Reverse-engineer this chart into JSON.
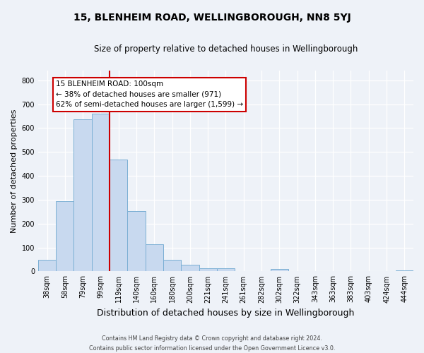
{
  "title": "15, BLENHEIM ROAD, WELLINGBOROUGH, NN8 5YJ",
  "subtitle": "Size of property relative to detached houses in Wellingborough",
  "xlabel": "Distribution of detached houses by size in Wellingborough",
  "ylabel": "Number of detached properties",
  "bar_labels": [
    "38sqm",
    "58sqm",
    "79sqm",
    "99sqm",
    "119sqm",
    "140sqm",
    "160sqm",
    "180sqm",
    "200sqm",
    "221sqm",
    "241sqm",
    "261sqm",
    "282sqm",
    "302sqm",
    "322sqm",
    "343sqm",
    "363sqm",
    "383sqm",
    "403sqm",
    "424sqm",
    "444sqm"
  ],
  "bar_values": [
    48,
    295,
    638,
    660,
    468,
    253,
    113,
    48,
    28,
    13,
    14,
    0,
    0,
    10,
    0,
    0,
    0,
    0,
    0,
    0,
    5
  ],
  "bar_color": "#c8d9ef",
  "bar_edge_color": "#7bafd4",
  "vline_color": "#cc0000",
  "ylim": [
    0,
    840
  ],
  "yticks": [
    0,
    100,
    200,
    300,
    400,
    500,
    600,
    700,
    800
  ],
  "annotation_text": "15 BLENHEIM ROAD: 100sqm\n← 38% of detached houses are smaller (971)\n62% of semi-detached houses are larger (1,599) →",
  "annotation_box_color": "#ffffff",
  "annotation_box_edge": "#cc0000",
  "footer_line1": "Contains HM Land Registry data © Crown copyright and database right 2024.",
  "footer_line2": "Contains public sector information licensed under the Open Government Licence v3.0.",
  "bg_color": "#eef2f8",
  "grid_color": "#ffffff",
  "title_fontsize": 10,
  "subtitle_fontsize": 8.5,
  "ylabel_fontsize": 8,
  "xlabel_fontsize": 9,
  "tick_fontsize": 7
}
